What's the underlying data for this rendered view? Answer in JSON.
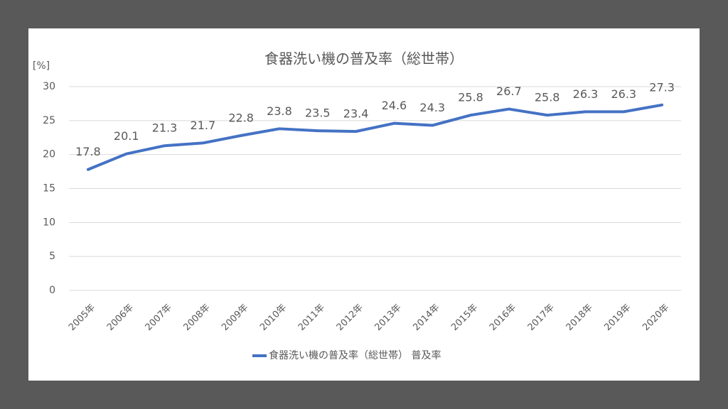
{
  "chart_data": {
    "type": "line",
    "title": "食器洗い機の普及率（総世帯）",
    "y_axis_label": "[%]",
    "categories": [
      "2005年",
      "2006年",
      "2007年",
      "2008年",
      "2009年",
      "2010年",
      "2011年",
      "2012年",
      "2013年",
      "2014年",
      "2015年",
      "2016年",
      "2017年",
      "2018年",
      "2019年",
      "2020年"
    ],
    "series": [
      {
        "name": "食器洗い機の普及率（総世帯） 普及率",
        "color": "#4472c4",
        "values": [
          17.8,
          20.1,
          21.3,
          21.7,
          22.8,
          23.8,
          23.5,
          23.4,
          24.6,
          24.3,
          25.8,
          26.7,
          25.8,
          26.3,
          26.3,
          27.3
        ]
      }
    ],
    "ylim": [
      0,
      30
    ],
    "yticks": [
      0,
      5,
      10,
      15,
      20,
      25,
      30
    ],
    "grid": true,
    "legend": "bottom"
  }
}
